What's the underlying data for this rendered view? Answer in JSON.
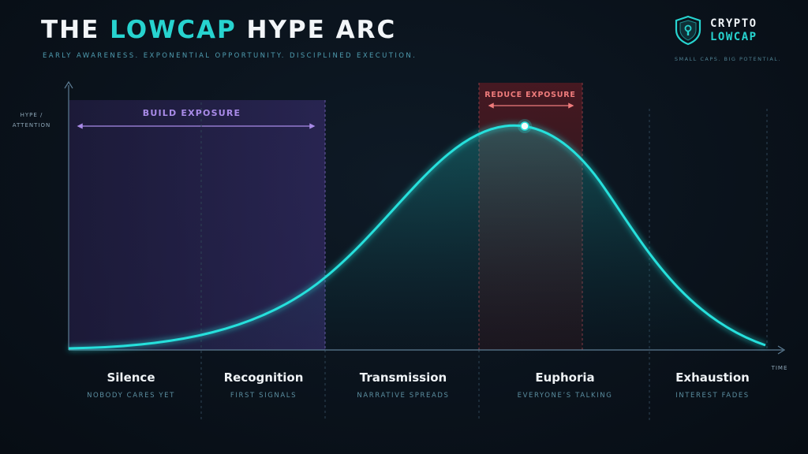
{
  "header": {
    "title_prefix": "THE ",
    "title_accent": "LOWCAP",
    "title_suffix": " HYPE ARC",
    "subtitle": "EARLY AWARENESS. EXPONENTIAL OPPORTUNITY. DISCIPLINED EXECUTION."
  },
  "brand": {
    "line1": "CRYPTO",
    "line2": "LOWCAP",
    "tagline": "SMALL CAPS. BIG POTENTIAL.",
    "icon": "shield-keyhole-icon"
  },
  "axes": {
    "y_label_line1": "HYPE /",
    "y_label_line2": "ATTENTION",
    "x_label": "TIME"
  },
  "zones": {
    "build": {
      "label": "BUILD EXPOSURE",
      "color": "#a98be8"
    },
    "reduce": {
      "label": "REDUCE EXPOSURE",
      "color": "#f07c7c"
    }
  },
  "phases": [
    {
      "name": "Silence",
      "subtitle": "NOBODY CARES YET"
    },
    {
      "name": "Recognition",
      "subtitle": "FIRST SIGNALS"
    },
    {
      "name": "Transmission",
      "subtitle": "NARRATIVE SPREADS"
    },
    {
      "name": "Euphoria",
      "subtitle": "EVERYONE’S TALKING"
    },
    {
      "name": "Exhaustion",
      "subtitle": "INTEREST FADES"
    }
  ],
  "colors": {
    "curve": "#27e0dc",
    "accent": "#27d3cf"
  }
}
